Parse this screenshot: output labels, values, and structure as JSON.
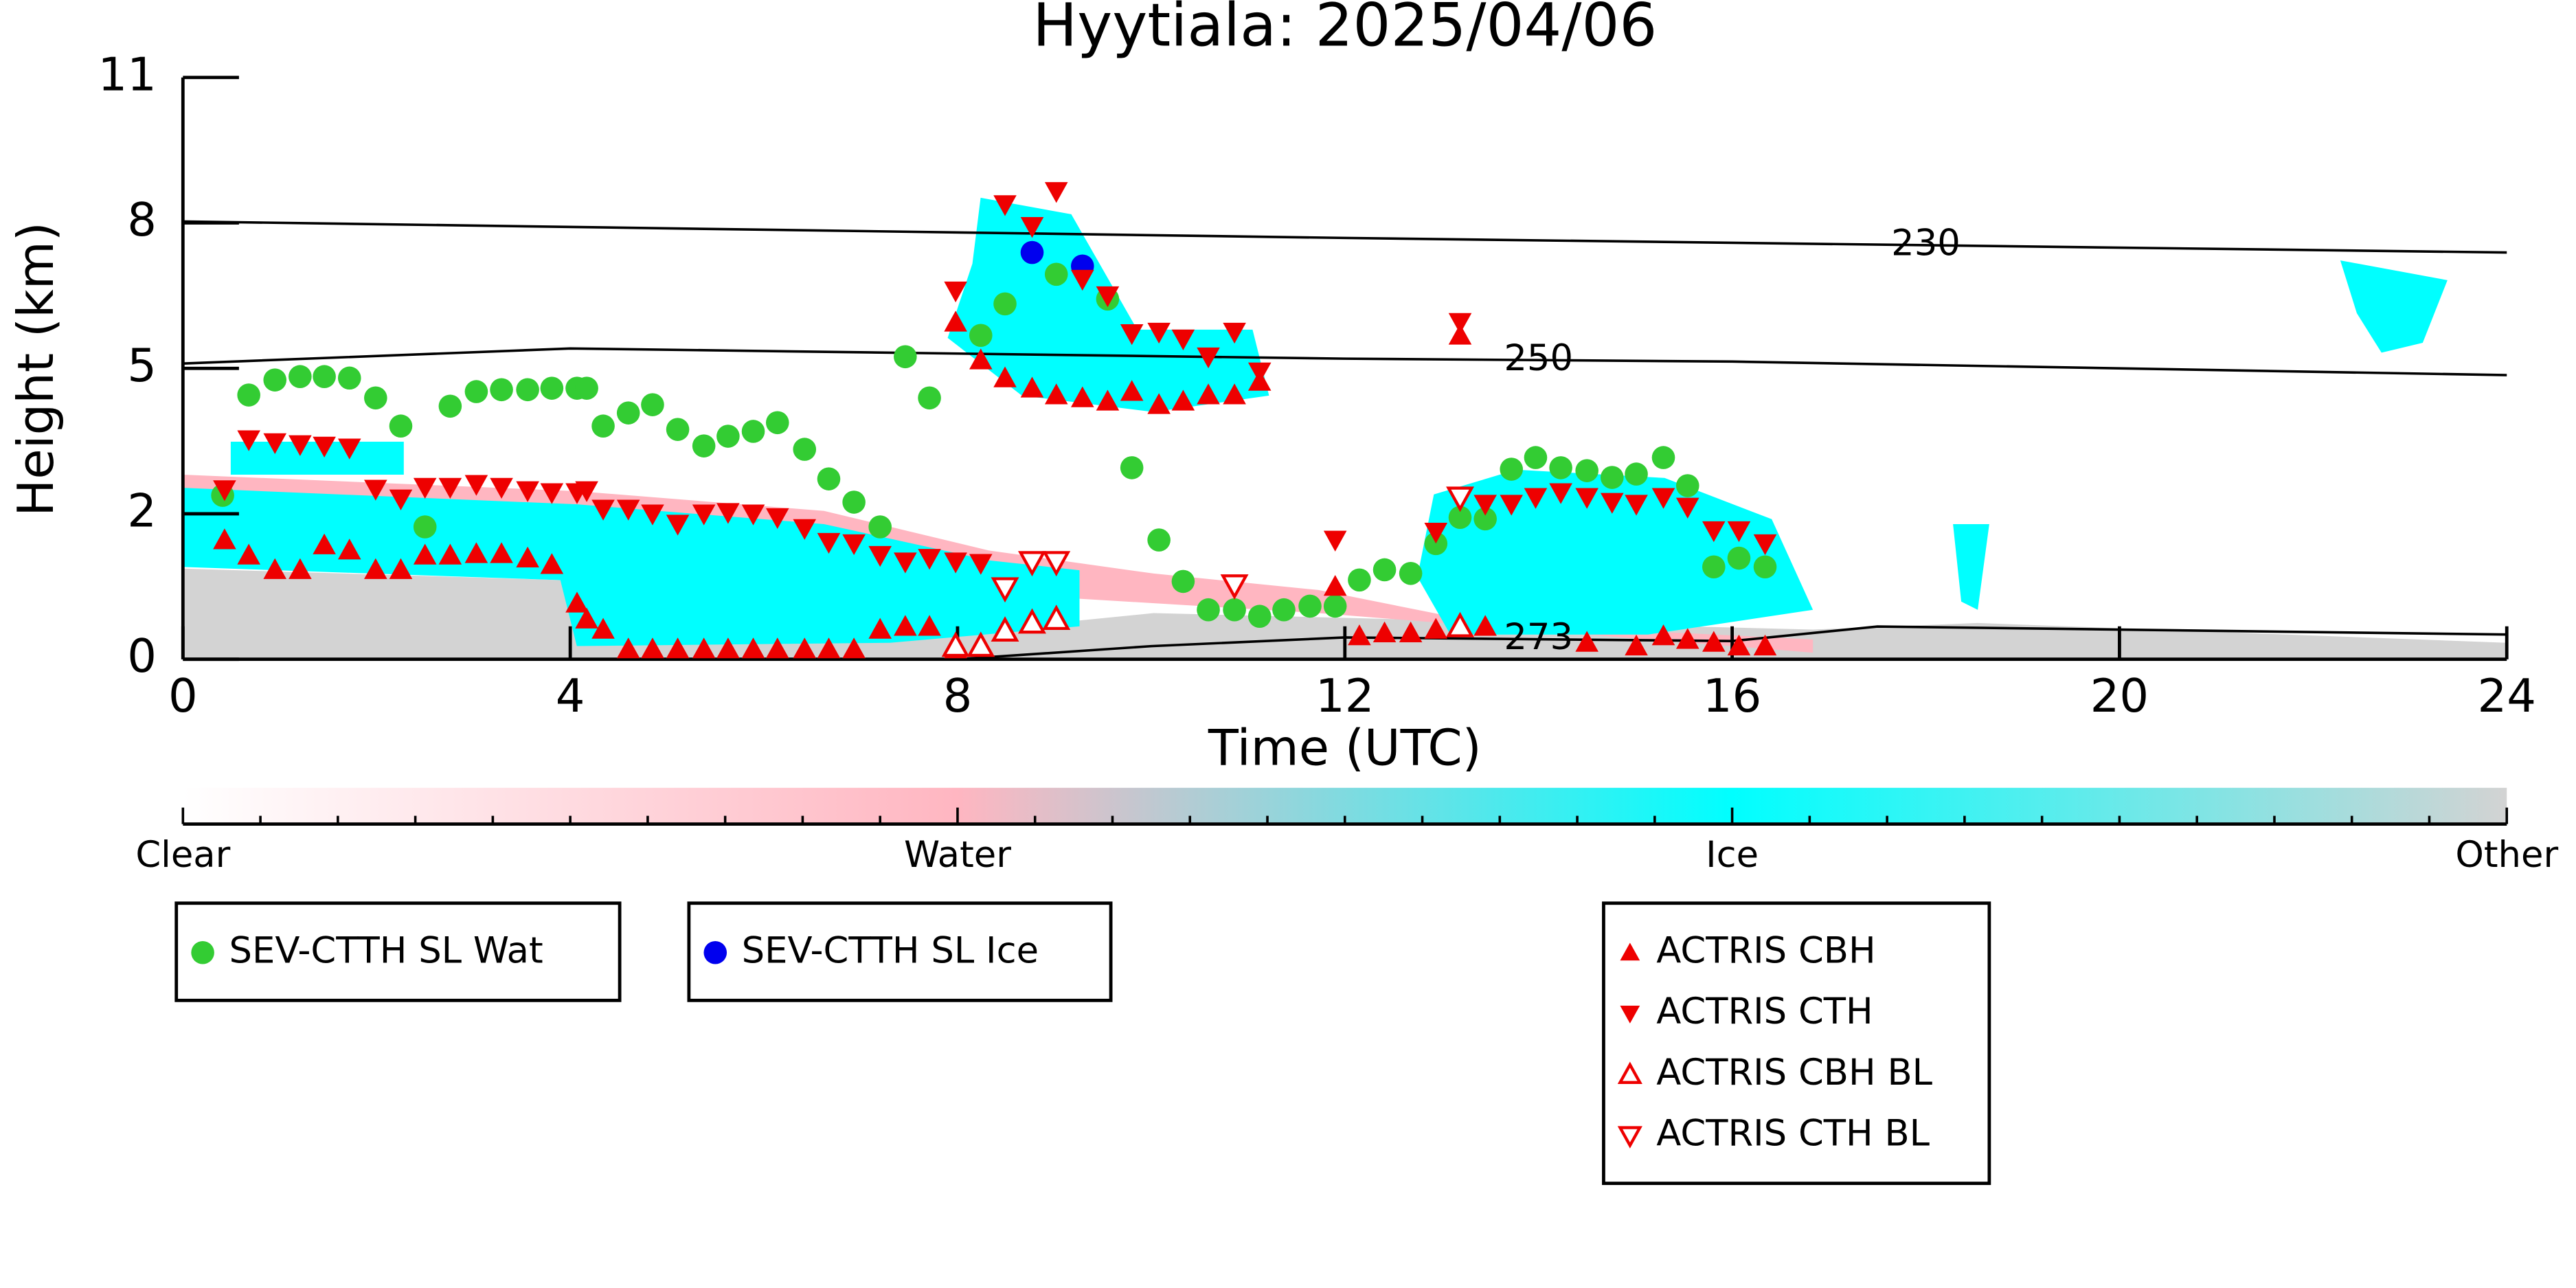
{
  "chart_data": {
    "type": "scatter",
    "title": "Hyytiala: 2025/04/06",
    "xlabel": "Time (UTC)",
    "ylabel": "Height (km)",
    "xlim": [
      0,
      24
    ],
    "xticks": [
      0,
      4,
      8,
      12,
      16,
      20,
      24
    ],
    "ylim": [
      0,
      11
    ],
    "yticks": [
      0,
      2,
      5,
      8,
      11
    ],
    "series": [
      {
        "name": "SEV-CTTH SL Wat",
        "color": "#33cc33",
        "marker": "circle",
        "x": [
          0.41,
          0.68,
          0.95,
          1.21,
          1.46,
          1.72,
          1.99,
          2.25,
          2.5,
          2.76,
          3.03,
          3.29,
          3.56,
          3.81,
          4.07,
          4.17,
          4.34,
          4.6,
          4.85,
          5.11,
          5.38,
          5.63,
          5.89,
          6.14,
          6.42,
          6.67,
          6.93,
          7.2,
          7.46,
          7.71,
          8.24,
          8.49,
          9.02,
          9.55,
          9.8,
          10.08,
          10.33,
          10.59,
          10.86,
          11.12,
          11.37,
          11.64,
          11.9,
          12.15,
          12.41,
          12.68,
          12.94,
          13.19,
          13.45,
          13.72,
          13.97,
          14.23,
          14.5,
          14.76,
          15.01,
          15.29,
          15.54,
          15.81,
          16.07,
          16.34
        ],
        "values": [
          2.38,
          4.45,
          4.76,
          4.83,
          4.83,
          4.8,
          4.39,
          3.81,
          1.82,
          4.22,
          4.52,
          4.56,
          4.56,
          4.59,
          4.59,
          4.59,
          3.81,
          4.08,
          4.25,
          3.74,
          3.4,
          3.6,
          3.7,
          3.88,
          3.33,
          2.72,
          2.24,
          1.82,
          5.24,
          4.39,
          5.68,
          6.33,
          6.94,
          6.43,
          2.95,
          1.64,
          1.07,
          0.68,
          0.68,
          0.59,
          0.68,
          0.73,
          0.73,
          1.09,
          1.23,
          1.18,
          1.59,
          1.95,
          1.93,
          2.92,
          3.16,
          2.95,
          2.89,
          2.75,
          2.82,
          3.16,
          2.58,
          1.27,
          1.39,
          1.27
        ]
      },
      {
        "name": "SEV-CTTH SL Ice",
        "color": "#0000ee",
        "marker": "circle",
        "x": [
          8.77,
          9.29
        ],
        "values": [
          7.39,
          7.11
        ]
      },
      {
        "name": "ACTRIS CBH",
        "color": "#ee0000",
        "marker": "up",
        "x": [
          0.43,
          0.68,
          0.95,
          1.21,
          1.46,
          1.72,
          1.99,
          2.25,
          2.5,
          2.76,
          3.03,
          3.29,
          3.56,
          3.81,
          4.07,
          4.17,
          4.34,
          4.6,
          4.85,
          5.11,
          5.38,
          5.63,
          5.89,
          6.14,
          6.42,
          6.67,
          6.93,
          7.2,
          7.46,
          7.71,
          7.98,
          7.98,
          8.24,
          8.49,
          8.77,
          9.02,
          9.29,
          9.55,
          9.8,
          10.08,
          10.33,
          10.59,
          10.86,
          11.12,
          11.9,
          12.15,
          12.41,
          12.68,
          12.94,
          13.19,
          13.45,
          14.5,
          15.01,
          15.29,
          15.54,
          15.81,
          16.07,
          16.34
        ],
        "values": [
          1.64,
          1.43,
          1.23,
          1.23,
          1.57,
          1.5,
          1.23,
          1.23,
          1.43,
          1.43,
          1.45,
          1.45,
          1.39,
          1.3,
          0.77,
          0.55,
          0.41,
          0.14,
          0.14,
          0.14,
          0.14,
          0.14,
          0.14,
          0.14,
          0.14,
          0.14,
          0.14,
          0.41,
          0.45,
          0.45,
          0.14,
          5.95,
          5.17,
          4.8,
          4.59,
          4.45,
          4.39,
          4.32,
          4.52,
          4.25,
          4.32,
          4.45,
          4.45,
          4.73,
          1.0,
          0.32,
          0.36,
          0.36,
          0.41,
          5.68,
          0.45,
          0.23,
          0.18,
          0.32,
          0.27,
          0.23,
          0.18,
          0.18
        ]
      },
      {
        "name": "ACTRIS CTH",
        "color": "#ee0000",
        "marker": "down",
        "x": [
          0.43,
          0.68,
          0.95,
          1.21,
          1.46,
          1.72,
          1.99,
          2.25,
          2.5,
          2.76,
          3.03,
          3.29,
          3.56,
          3.81,
          4.07,
          4.17,
          4.34,
          4.6,
          4.85,
          5.11,
          5.38,
          5.63,
          5.89,
          6.14,
          6.42,
          6.67,
          6.93,
          7.2,
          7.46,
          7.71,
          7.98,
          7.98,
          8.24,
          8.49,
          8.77,
          9.02,
          9.29,
          9.55,
          9.8,
          10.08,
          10.33,
          10.59,
          10.86,
          11.12,
          11.9,
          12.94,
          13.19,
          13.45,
          13.72,
          13.97,
          14.23,
          14.5,
          14.76,
          15.01,
          15.29,
          15.54,
          15.81,
          16.07,
          16.34
        ],
        "values": [
          2.5,
          3.53,
          3.47,
          3.43,
          3.4,
          3.36,
          2.51,
          2.31,
          2.55,
          2.55,
          2.61,
          2.55,
          2.48,
          2.44,
          2.44,
          2.48,
          2.1,
          2.1,
          2.0,
          1.86,
          2.0,
          2.03,
          2.0,
          1.95,
          1.8,
          1.61,
          1.59,
          1.43,
          1.34,
          1.39,
          1.34,
          6.6,
          1.32,
          8.38,
          7.93,
          8.65,
          6.84,
          6.5,
          5.72,
          5.75,
          5.61,
          5.24,
          5.75,
          4.93,
          1.64,
          1.75,
          5.95,
          2.2,
          2.2,
          2.34,
          2.44,
          2.34,
          2.24,
          2.2,
          2.34,
          2.14,
          1.77,
          1.77,
          1.59
        ]
      },
      {
        "name": "ACTRIS CBH BL",
        "color": "#ee0000",
        "marker": "up-open",
        "x": [
          7.98,
          8.24,
          8.49,
          8.77,
          9.02,
          13.19
        ],
        "values": [
          0.18,
          0.18,
          0.39,
          0.5,
          0.55,
          0.45
        ]
      },
      {
        "name": "ACTRIS CTH BL",
        "color": "#ee0000",
        "marker": "down-open",
        "x": [
          8.49,
          8.77,
          9.02,
          10.86,
          13.19
        ],
        "values": [
          0.98,
          1.34,
          1.34,
          1.02,
          2.34
        ]
      }
    ],
    "contours": [
      {
        "name": "230",
        "x": [
          0,
          12,
          24
        ],
        "values": [
          8.03,
          7.69,
          7.39
        ]
      },
      {
        "name": "250",
        "x": [
          0,
          4,
          12,
          16,
          24
        ],
        "values": [
          5.1,
          5.41,
          5.2,
          5.14,
          4.86
        ]
      },
      {
        "name": "273",
        "x": [
          8,
          10,
          12,
          16,
          17.5,
          24
        ],
        "values": [
          0,
          0.18,
          0.3,
          0.25,
          0.45,
          0.34
        ]
      }
    ],
    "colorbar": {
      "labels": [
        "Clear",
        "Water",
        "Ice",
        "Other"
      ],
      "colors": [
        "#ffffff",
        "#ffb6c1",
        "#00ffff",
        "#d3d3d3"
      ]
    }
  }
}
